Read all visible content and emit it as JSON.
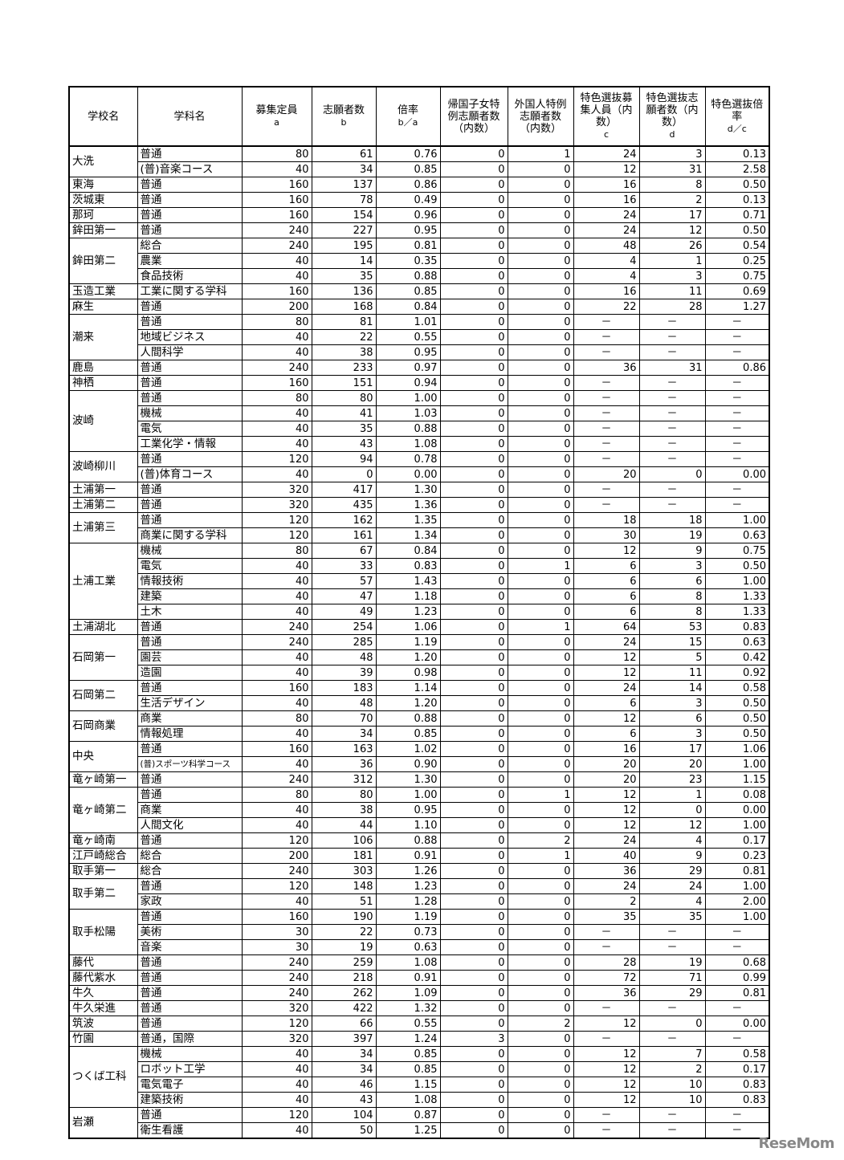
{
  "headers": [
    {
      "label": "学校名",
      "sub": ""
    },
    {
      "label": "学科名",
      "sub": ""
    },
    {
      "label": "募集定員",
      "sub": "a"
    },
    {
      "label": "志願者数",
      "sub": "b"
    },
    {
      "label": "倍率",
      "sub": "b／a"
    },
    {
      "label": "帰国子女特例志願者数（内数）",
      "sub": ""
    },
    {
      "label": "外国人特例志願者数（内数）",
      "sub": ""
    },
    {
      "label": "特色選抜募集人員（内数）",
      "sub": "c"
    },
    {
      "label": "特色選抜志願者数（内数）",
      "sub": "d"
    },
    {
      "label": "特色選抜倍率",
      "sub": "d／c"
    }
  ],
  "schools": [
    {
      "name": "大洗",
      "rows": [
        [
          "普通",
          "80",
          "61",
          "0.76",
          "0",
          "1",
          "24",
          "3",
          "0.13"
        ],
        [
          "(普)音楽コース",
          "40",
          "34",
          "0.85",
          "0",
          "0",
          "12",
          "31",
          "2.58"
        ]
      ]
    },
    {
      "name": "東海",
      "rows": [
        [
          "普通",
          "160",
          "137",
          "0.86",
          "0",
          "0",
          "16",
          "8",
          "0.50"
        ]
      ]
    },
    {
      "name": "茨城東",
      "rows": [
        [
          "普通",
          "160",
          "78",
          "0.49",
          "0",
          "0",
          "16",
          "2",
          "0.13"
        ]
      ]
    },
    {
      "name": "那珂",
      "rows": [
        [
          "普通",
          "160",
          "154",
          "0.96",
          "0",
          "0",
          "24",
          "17",
          "0.71"
        ]
      ]
    },
    {
      "name": "鉾田第一",
      "rows": [
        [
          "普通",
          "240",
          "227",
          "0.95",
          "0",
          "0",
          "24",
          "12",
          "0.50"
        ]
      ]
    },
    {
      "name": "鉾田第二",
      "rows": [
        [
          "総合",
          "240",
          "195",
          "0.81",
          "0",
          "0",
          "48",
          "26",
          "0.54"
        ],
        [
          "農業",
          "40",
          "14",
          "0.35",
          "0",
          "0",
          "4",
          "1",
          "0.25"
        ],
        [
          "食品技術",
          "40",
          "35",
          "0.88",
          "0",
          "0",
          "4",
          "3",
          "0.75"
        ]
      ]
    },
    {
      "name": "玉造工業",
      "rows": [
        [
          "工業に関する学科",
          "160",
          "136",
          "0.85",
          "0",
          "0",
          "16",
          "11",
          "0.69"
        ]
      ]
    },
    {
      "name": "麻生",
      "rows": [
        [
          "普通",
          "200",
          "168",
          "0.84",
          "0",
          "0",
          "22",
          "28",
          "1.27"
        ]
      ]
    },
    {
      "name": "潮来",
      "rows": [
        [
          "普通",
          "80",
          "81",
          "1.01",
          "0",
          "0",
          "－",
          "－",
          "－"
        ],
        [
          "地域ビジネス",
          "40",
          "22",
          "0.55",
          "0",
          "0",
          "－",
          "－",
          "－"
        ],
        [
          "人間科学",
          "40",
          "38",
          "0.95",
          "0",
          "0",
          "－",
          "－",
          "－"
        ]
      ]
    },
    {
      "name": "鹿島",
      "rows": [
        [
          "普通",
          "240",
          "233",
          "0.97",
          "0",
          "0",
          "36",
          "31",
          "0.86"
        ]
      ]
    },
    {
      "name": "神栖",
      "rows": [
        [
          "普通",
          "160",
          "151",
          "0.94",
          "0",
          "0",
          "－",
          "－",
          "－"
        ]
      ]
    },
    {
      "name": "波崎",
      "rows": [
        [
          "普通",
          "80",
          "80",
          "1.00",
          "0",
          "0",
          "－",
          "－",
          "－"
        ],
        [
          "機械",
          "40",
          "41",
          "1.03",
          "0",
          "0",
          "－",
          "－",
          "－"
        ],
        [
          "電気",
          "40",
          "35",
          "0.88",
          "0",
          "0",
          "－",
          "－",
          "－"
        ],
        [
          "工業化学・情報",
          "40",
          "43",
          "1.08",
          "0",
          "0",
          "－",
          "－",
          "－"
        ]
      ]
    },
    {
      "name": "波崎柳川",
      "rows": [
        [
          "普通",
          "120",
          "94",
          "0.78",
          "0",
          "0",
          "－",
          "－",
          "－"
        ],
        [
          "(普)体育コース",
          "40",
          "0",
          "0.00",
          "0",
          "0",
          "20",
          "0",
          "0.00"
        ]
      ]
    },
    {
      "name": "土浦第一",
      "rows": [
        [
          "普通",
          "320",
          "417",
          "1.30",
          "0",
          "0",
          "－",
          "－",
          "－"
        ]
      ]
    },
    {
      "name": "土浦第二",
      "rows": [
        [
          "普通",
          "320",
          "435",
          "1.36",
          "0",
          "0",
          "－",
          "－",
          "－"
        ]
      ]
    },
    {
      "name": "土浦第三",
      "rows": [
        [
          "普通",
          "120",
          "162",
          "1.35",
          "0",
          "0",
          "18",
          "18",
          "1.00"
        ],
        [
          "商業に関する学科",
          "120",
          "161",
          "1.34",
          "0",
          "0",
          "30",
          "19",
          "0.63"
        ]
      ]
    },
    {
      "name": "土浦工業",
      "rows": [
        [
          "機械",
          "80",
          "67",
          "0.84",
          "0",
          "0",
          "12",
          "9",
          "0.75"
        ],
        [
          "電気",
          "40",
          "33",
          "0.83",
          "0",
          "1",
          "6",
          "3",
          "0.50"
        ],
        [
          "情報技術",
          "40",
          "57",
          "1.43",
          "0",
          "0",
          "6",
          "6",
          "1.00"
        ],
        [
          "建築",
          "40",
          "47",
          "1.18",
          "0",
          "0",
          "6",
          "8",
          "1.33"
        ],
        [
          "土木",
          "40",
          "49",
          "1.23",
          "0",
          "0",
          "6",
          "8",
          "1.33"
        ]
      ]
    },
    {
      "name": "土浦湖北",
      "rows": [
        [
          "普通",
          "240",
          "254",
          "1.06",
          "0",
          "1",
          "64",
          "53",
          "0.83"
        ]
      ]
    },
    {
      "name": "石岡第一",
      "rows": [
        [
          "普通",
          "240",
          "285",
          "1.19",
          "0",
          "0",
          "24",
          "15",
          "0.63"
        ],
        [
          "園芸",
          "40",
          "48",
          "1.20",
          "0",
          "0",
          "12",
          "5",
          "0.42"
        ],
        [
          "造園",
          "40",
          "39",
          "0.98",
          "0",
          "0",
          "12",
          "11",
          "0.92"
        ]
      ]
    },
    {
      "name": "石岡第二",
      "rows": [
        [
          "普通",
          "160",
          "183",
          "1.14",
          "0",
          "0",
          "24",
          "14",
          "0.58"
        ],
        [
          "生活デザイン",
          "40",
          "48",
          "1.20",
          "0",
          "0",
          "6",
          "3",
          "0.50"
        ]
      ]
    },
    {
      "name": "石岡商業",
      "rows": [
        [
          "商業",
          "80",
          "70",
          "0.88",
          "0",
          "0",
          "12",
          "6",
          "0.50"
        ],
        [
          "情報処理",
          "40",
          "34",
          "0.85",
          "0",
          "0",
          "6",
          "3",
          "0.50"
        ]
      ]
    },
    {
      "name": "中央",
      "rows": [
        [
          "普通",
          "160",
          "163",
          "1.02",
          "0",
          "0",
          "16",
          "17",
          "1.06"
        ],
        [
          "(普)スポーツ科学コース",
          "40",
          "36",
          "0.90",
          "0",
          "0",
          "20",
          "20",
          "1.00"
        ]
      ]
    },
    {
      "name": "竜ヶ崎第一",
      "rows": [
        [
          "普通",
          "240",
          "312",
          "1.30",
          "0",
          "0",
          "20",
          "23",
          "1.15"
        ]
      ]
    },
    {
      "name": "竜ヶ崎第二",
      "rows": [
        [
          "普通",
          "80",
          "80",
          "1.00",
          "0",
          "1",
          "12",
          "1",
          "0.08"
        ],
        [
          "商業",
          "40",
          "38",
          "0.95",
          "0",
          "0",
          "12",
          "0",
          "0.00"
        ],
        [
          "人間文化",
          "40",
          "44",
          "1.10",
          "0",
          "0",
          "12",
          "12",
          "1.00"
        ]
      ]
    },
    {
      "name": "竜ヶ崎南",
      "rows": [
        [
          "普通",
          "120",
          "106",
          "0.88",
          "0",
          "2",
          "24",
          "4",
          "0.17"
        ]
      ]
    },
    {
      "name": "江戸崎総合",
      "rows": [
        [
          "総合",
          "200",
          "181",
          "0.91",
          "0",
          "1",
          "40",
          "9",
          "0.23"
        ]
      ]
    },
    {
      "name": "取手第一",
      "rows": [
        [
          "総合",
          "240",
          "303",
          "1.26",
          "0",
          "0",
          "36",
          "29",
          "0.81"
        ]
      ]
    },
    {
      "name": "取手第二",
      "rows": [
        [
          "普通",
          "120",
          "148",
          "1.23",
          "0",
          "0",
          "24",
          "24",
          "1.00"
        ],
        [
          "家政",
          "40",
          "51",
          "1.28",
          "0",
          "0",
          "2",
          "4",
          "2.00"
        ]
      ]
    },
    {
      "name": "取手松陽",
      "rows": [
        [
          "普通",
          "160",
          "190",
          "1.19",
          "0",
          "0",
          "35",
          "35",
          "1.00"
        ],
        [
          "美術",
          "30",
          "22",
          "0.73",
          "0",
          "0",
          "－",
          "－",
          "－"
        ],
        [
          "音楽",
          "30",
          "19",
          "0.63",
          "0",
          "0",
          "－",
          "－",
          "－"
        ]
      ]
    },
    {
      "name": "藤代",
      "rows": [
        [
          "普通",
          "240",
          "259",
          "1.08",
          "0",
          "0",
          "28",
          "19",
          "0.68"
        ]
      ]
    },
    {
      "name": "藤代紫水",
      "rows": [
        [
          "普通",
          "240",
          "218",
          "0.91",
          "0",
          "0",
          "72",
          "71",
          "0.99"
        ]
      ]
    },
    {
      "name": "牛久",
      "rows": [
        [
          "普通",
          "240",
          "262",
          "1.09",
          "0",
          "0",
          "36",
          "29",
          "0.81"
        ]
      ]
    },
    {
      "name": "牛久栄進",
      "rows": [
        [
          "普通",
          "320",
          "422",
          "1.32",
          "0",
          "0",
          "－",
          "－",
          "－"
        ]
      ]
    },
    {
      "name": "筑波",
      "rows": [
        [
          "普通",
          "120",
          "66",
          "0.55",
          "0",
          "2",
          "12",
          "0",
          "0.00"
        ]
      ]
    },
    {
      "name": "竹園",
      "rows": [
        [
          "普通，国際",
          "320",
          "397",
          "1.24",
          "3",
          "0",
          "－",
          "－",
          "－"
        ]
      ]
    },
    {
      "name": "つくば工科",
      "rows": [
        [
          "機械",
          "40",
          "34",
          "0.85",
          "0",
          "0",
          "12",
          "7",
          "0.58"
        ],
        [
          "ロボット工学",
          "40",
          "34",
          "0.85",
          "0",
          "0",
          "12",
          "2",
          "0.17"
        ],
        [
          "電気電子",
          "40",
          "46",
          "1.15",
          "0",
          "0",
          "12",
          "10",
          "0.83"
        ],
        [
          "建築技術",
          "40",
          "43",
          "1.08",
          "0",
          "0",
          "12",
          "10",
          "0.83"
        ]
      ]
    },
    {
      "name": "岩瀬",
      "rows": [
        [
          "普通",
          "120",
          "104",
          "0.87",
          "0",
          "0",
          "－",
          "－",
          "－"
        ],
        [
          "衛生看護",
          "40",
          "50",
          "1.25",
          "0",
          "0",
          "－",
          "－",
          "－"
        ]
      ]
    }
  ],
  "watermark": "ReseMom"
}
